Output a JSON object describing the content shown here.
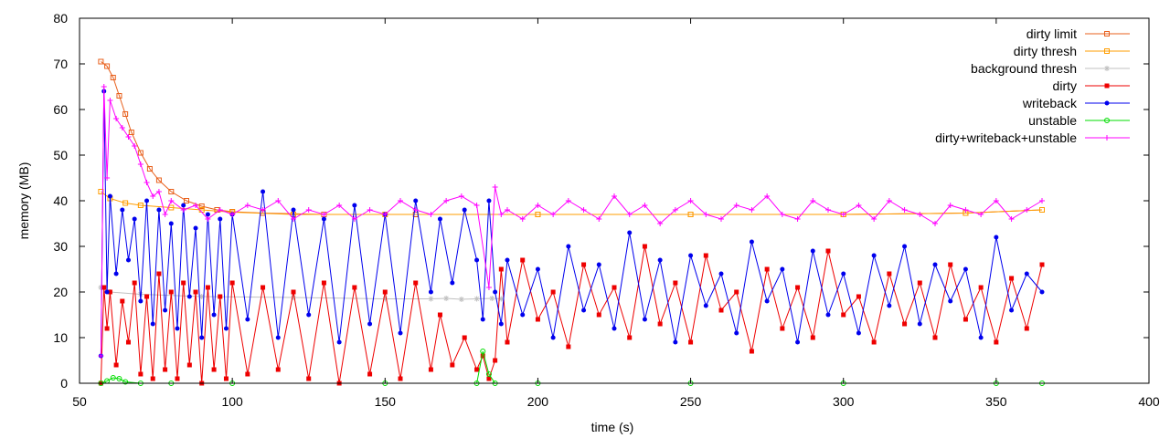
{
  "chart_data": {
    "type": "line",
    "xlabel": "time (s)",
    "ylabel": "memory (MB)",
    "xlim": [
      50,
      400
    ],
    "ylim": [
      0,
      80
    ],
    "xticks": [
      50,
      100,
      150,
      200,
      250,
      300,
      350,
      400
    ],
    "yticks": [
      0,
      10,
      20,
      30,
      40,
      50,
      60,
      70,
      80
    ],
    "grid": false,
    "legend_position": "top-right",
    "series": [
      {
        "name": "dirty limit",
        "color": "#e8601c",
        "marker": "square-open",
        "x": [
          57,
          59,
          61,
          63,
          65,
          67,
          70,
          73,
          76,
          80,
          85,
          90,
          95,
          100,
          110,
          130,
          160,
          200,
          250,
          300,
          340,
          365
        ],
        "y": [
          70.5,
          69.5,
          67,
          63,
          59,
          55,
          50.5,
          47,
          44.5,
          42,
          40,
          38.8,
          38,
          37.6,
          37.3,
          37,
          37,
          37,
          37,
          37,
          37.3,
          38
        ]
      },
      {
        "name": "dirty thresh",
        "color": "#ff9d00",
        "marker": "square-open",
        "x": [
          57,
          60,
          65,
          70,
          80,
          90,
          100,
          120,
          150,
          200,
          250,
          300,
          340,
          365
        ],
        "y": [
          42,
          40.5,
          39.5,
          39,
          38.5,
          38,
          37.5,
          37,
          37,
          37,
          37,
          37,
          37.3,
          38
        ]
      },
      {
        "name": "background thresh",
        "color": "#c0c0c0",
        "marker": "star",
        "x": [
          57,
          60,
          70,
          90,
          120,
          150,
          165,
          170,
          175,
          180,
          185,
          188
        ],
        "y": [
          21,
          20,
          19.5,
          19,
          18.8,
          18.5,
          18.5,
          18.6,
          18.4,
          18.5,
          18.6,
          18.5
        ]
      },
      {
        "name": "dirty",
        "color": "#ee0000",
        "marker": "square-filled",
        "x": [
          57,
          58,
          59,
          60,
          62,
          64,
          66,
          68,
          70,
          72,
          74,
          76,
          78,
          80,
          82,
          84,
          86,
          88,
          90,
          92,
          94,
          96,
          98,
          100,
          105,
          110,
          115,
          120,
          125,
          130,
          135,
          140,
          145,
          150,
          155,
          160,
          165,
          168,
          172,
          176,
          180,
          182,
          184,
          186,
          188,
          190,
          195,
          200,
          205,
          210,
          215,
          220,
          225,
          230,
          235,
          240,
          245,
          250,
          255,
          260,
          265,
          270,
          275,
          280,
          285,
          290,
          295,
          300,
          305,
          310,
          315,
          320,
          325,
          330,
          335,
          340,
          345,
          350,
          355,
          360,
          365
        ],
        "y": [
          0,
          21,
          12,
          20,
          4,
          18,
          9,
          22,
          2,
          19,
          1,
          24,
          3,
          20,
          1,
          22,
          4,
          20,
          0,
          21,
          3,
          19,
          1,
          22,
          2,
          21,
          3,
          20,
          1,
          22,
          0,
          21,
          2,
          20,
          1,
          22,
          3,
          15,
          4,
          10,
          3,
          6,
          1,
          5,
          25,
          9,
          27,
          14,
          20,
          8,
          26,
          15,
          21,
          10,
          30,
          13,
          22,
          9,
          28,
          16,
          20,
          7,
          25,
          12,
          21,
          10,
          29,
          15,
          19,
          9,
          24,
          13,
          22,
          10,
          26,
          14,
          21,
          9,
          23,
          12,
          26
        ]
      },
      {
        "name": "writeback",
        "color": "#0000ee",
        "marker": "circle-filled",
        "x": [
          57,
          58,
          59,
          60,
          62,
          64,
          66,
          68,
          70,
          72,
          74,
          76,
          78,
          80,
          82,
          84,
          86,
          88,
          90,
          92,
          94,
          96,
          98,
          100,
          105,
          110,
          115,
          120,
          125,
          130,
          135,
          140,
          145,
          150,
          155,
          160,
          165,
          168,
          172,
          176,
          180,
          182,
          184,
          186,
          188,
          190,
          195,
          200,
          205,
          210,
          215,
          220,
          225,
          230,
          235,
          240,
          245,
          250,
          255,
          260,
          265,
          270,
          275,
          280,
          285,
          290,
          295,
          300,
          305,
          310,
          315,
          320,
          325,
          330,
          335,
          340,
          345,
          350,
          355,
          360,
          365
        ],
        "y": [
          6,
          64,
          20,
          41,
          24,
          38,
          27,
          36,
          18,
          40,
          13,
          38,
          16,
          35,
          12,
          39,
          19,
          34,
          10,
          37,
          15,
          36,
          12,
          37,
          14,
          42,
          10,
          38,
          15,
          36,
          9,
          39,
          13,
          37,
          11,
          40,
          20,
          36,
          22,
          38,
          27,
          14,
          40,
          20,
          13,
          27,
          15,
          25,
          10,
          30,
          16,
          26,
          12,
          33,
          14,
          27,
          9,
          28,
          17,
          24,
          11,
          31,
          18,
          25,
          9,
          29,
          15,
          24,
          11,
          28,
          17,
          30,
          13,
          26,
          18,
          25,
          10,
          32,
          16,
          24,
          20
        ]
      },
      {
        "name": "unstable",
        "color": "#00dd00",
        "marker": "circle-open",
        "x": [
          57,
          59,
          61,
          63,
          65,
          70,
          80,
          100,
          150,
          180,
          182,
          184,
          186,
          200,
          250,
          300,
          350,
          365
        ],
        "y": [
          0,
          0.5,
          1.2,
          1,
          0.3,
          0,
          0,
          0,
          0,
          0,
          7,
          2,
          0,
          0,
          0,
          0,
          0,
          0
        ]
      },
      {
        "name": "dirty+writeback+unstable",
        "color": "#ff00ff",
        "marker": "plus",
        "x": [
          57,
          58,
          59,
          60,
          62,
          64,
          66,
          68,
          70,
          72,
          74,
          76,
          78,
          80,
          84,
          88,
          92,
          96,
          100,
          105,
          110,
          115,
          120,
          125,
          130,
          135,
          140,
          145,
          150,
          155,
          160,
          165,
          170,
          175,
          180,
          184,
          186,
          188,
          190,
          195,
          200,
          205,
          210,
          215,
          220,
          225,
          230,
          235,
          240,
          245,
          250,
          255,
          260,
          265,
          270,
          275,
          280,
          285,
          290,
          295,
          300,
          305,
          310,
          315,
          320,
          325,
          330,
          335,
          340,
          345,
          350,
          355,
          360,
          365
        ],
        "y": [
          6,
          65,
          45,
          62,
          58,
          56,
          54,
          52,
          48,
          44,
          41,
          42,
          37,
          40,
          38,
          39,
          36,
          38,
          37,
          39,
          38,
          40,
          36,
          38,
          37,
          39,
          36,
          38,
          37,
          40,
          38,
          37,
          40,
          41,
          39,
          21,
          43,
          37,
          38,
          36,
          39,
          37,
          40,
          38,
          36,
          41,
          37,
          39,
          35,
          38,
          40,
          37,
          36,
          39,
          38,
          41,
          37,
          36,
          40,
          38,
          37,
          39,
          36,
          40,
          38,
          37,
          35,
          39,
          38,
          37,
          40,
          36,
          38,
          40
        ]
      }
    ]
  }
}
